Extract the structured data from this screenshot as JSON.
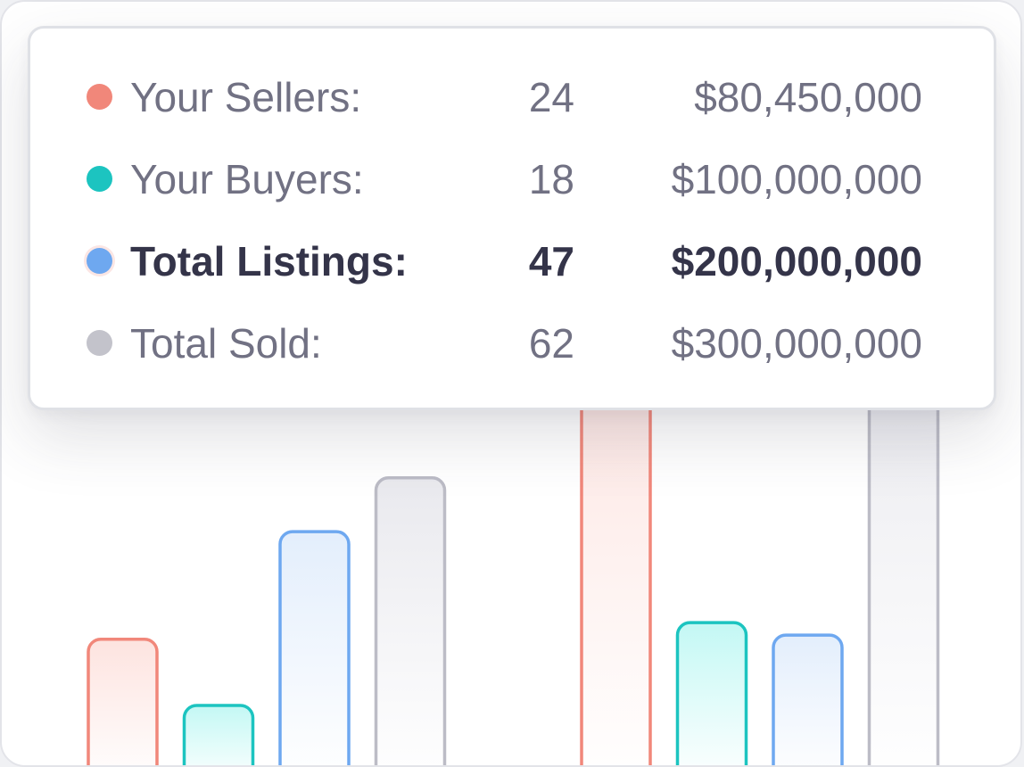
{
  "chart_data": {
    "type": "bar",
    "categories": [
      "",
      ""
    ],
    "ylim": [
      0,
      100
    ],
    "series": [
      {
        "name": "Your Sellers",
        "color": "#f1877a",
        "fill": "#fde3df",
        "values": [
          27,
          100
        ]
      },
      {
        "name": "Your Buyers",
        "color": "#1cc4c0",
        "fill": "#c3f8f4",
        "values": [
          11,
          31
        ]
      },
      {
        "name": "Total Listings",
        "color": "#6ea8f0",
        "fill": "#e3eefc",
        "values": [
          53,
          28
        ]
      },
      {
        "name": "Total Sold",
        "color": "#bcbcc6",
        "fill": "#e9e9ee",
        "values": [
          66,
          100
        ]
      }
    ]
  },
  "tooltip": {
    "rows": [
      {
        "label": "Your Sellers:",
        "count": "24",
        "amount": "$80,450,000",
        "color": "#f1877a",
        "bold": false
      },
      {
        "label": "Your Buyers:",
        "count": "18",
        "amount": "$100,000,000",
        "color": "#1cc4c0",
        "bold": false
      },
      {
        "label": "Total Listings:",
        "count": "47",
        "amount": "$200,000,000",
        "color": "#6ea8f0",
        "bold": true
      },
      {
        "label": "Total Sold:",
        "count": "62",
        "amount": "$300,000,000",
        "color": "#c3c3cb",
        "bold": false
      }
    ]
  }
}
